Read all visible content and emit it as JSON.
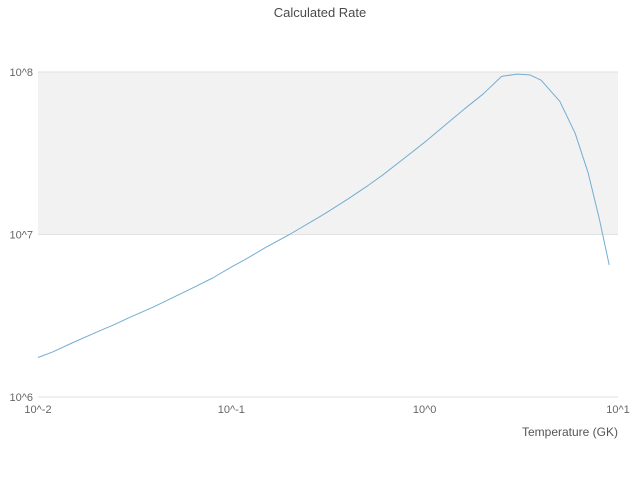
{
  "title": "Calculated Rate",
  "chart_data": {
    "type": "line",
    "title": "Calculated Rate",
    "xlabel": "Temperature (GK)",
    "ylabel": "",
    "x_scale": "log",
    "y_scale": "log",
    "xlim": [
      0.01,
      10
    ],
    "ylim": [
      1000000,
      100000000
    ],
    "x_tick_values": [
      0.01,
      0.1,
      1,
      10
    ],
    "x_tick_labels": [
      "10^-2",
      "10^-1",
      "10^0",
      "10^1"
    ],
    "y_tick_values": [
      1000000,
      10000000,
      100000000
    ],
    "y_tick_labels": [
      "10^6",
      "10^7",
      "10^8"
    ],
    "grid": true,
    "legend": false,
    "shaded_band": {
      "y_from": 10000000,
      "y_to": 100000000,
      "color": "#f2f2f2"
    },
    "colors": {
      "line": "#74add1",
      "grid": "#e2e2e2",
      "background": "#ffffff"
    },
    "series": [
      {
        "name": "Calculated Rate",
        "color": "#74add1",
        "x": [
          0.01,
          0.012,
          0.015,
          0.02,
          0.025,
          0.03,
          0.04,
          0.05,
          0.06,
          0.08,
          0.1,
          0.12,
          0.15,
          0.2,
          0.25,
          0.3,
          0.4,
          0.5,
          0.6,
          0.8,
          1.0,
          1.3,
          1.6,
          2.0,
          2.5,
          3.0,
          3.5,
          4.0,
          5.0,
          6.0,
          7.0,
          8.0,
          9.0
        ],
        "y": [
          1750000,
          1900000,
          2150000,
          2500000,
          2800000,
          3100000,
          3600000,
          4100000,
          4550000,
          5400000,
          6300000,
          7100000,
          8300000,
          10000000,
          11700000,
          13300000,
          16500000,
          19700000,
          23000000,
          30000000,
          37000000,
          48000000,
          59000000,
          73000000,
          94000000,
          97000000,
          96000000,
          89000000,
          66000000,
          42000000,
          24000000,
          12500000,
          6500000
        ]
      }
    ]
  }
}
